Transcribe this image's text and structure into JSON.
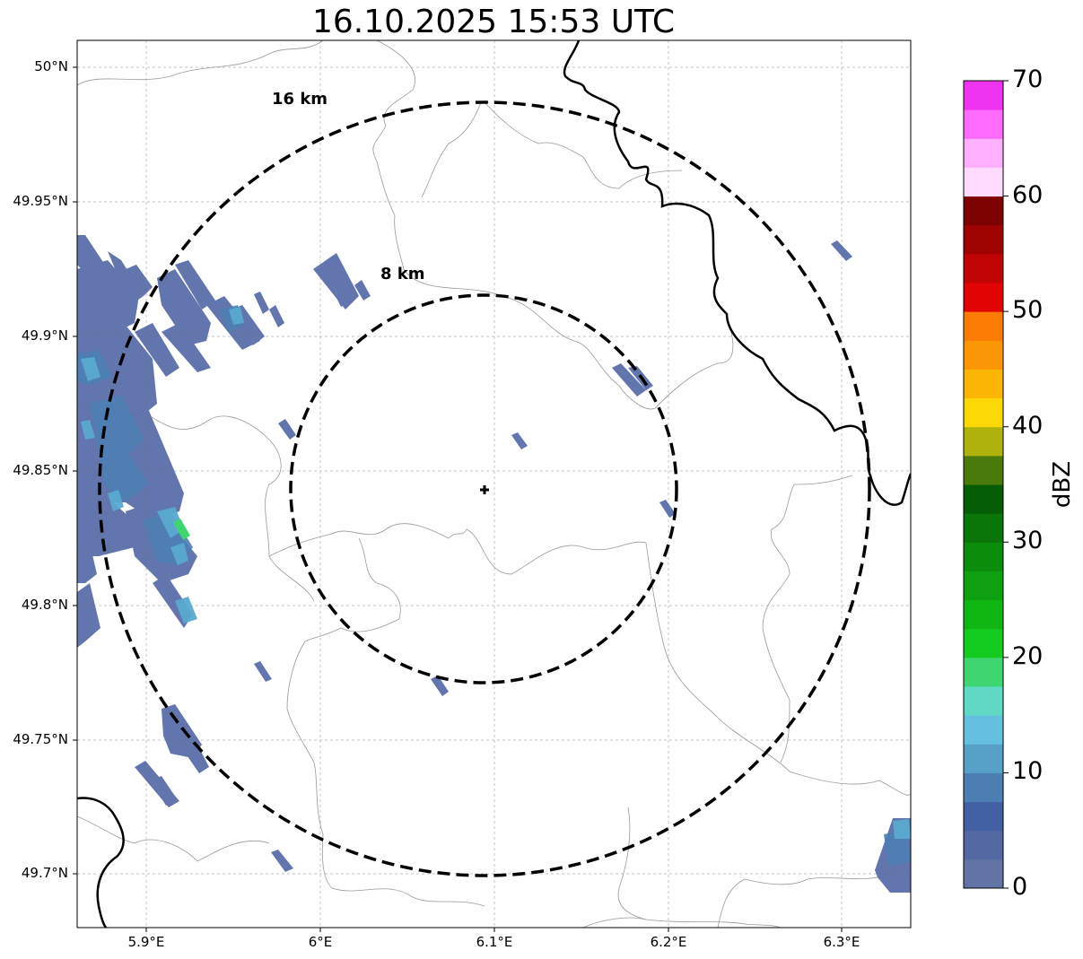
{
  "title": "16.10.2025 15:53 UTC",
  "map": {
    "lat_ticks": [
      "50°N",
      "49.95°N",
      "49.9°N",
      "49.85°N",
      "49.8°N",
      "49.75°N",
      "49.7°N"
    ],
    "lon_ticks": [
      "5.9°E",
      "6°E",
      "6.1°E",
      "6.2°E",
      "6.3°E"
    ],
    "rings": [
      {
        "label": "16 km",
        "radius_km": 16
      },
      {
        "label": "8 km",
        "radius_km": 8
      }
    ],
    "radar_site_marker": "plus-icon",
    "colors": {
      "ring": "#000000",
      "border_thin": "#999999",
      "border_thick": "#000000",
      "grid": "#b0b0b0"
    }
  },
  "colorbar": {
    "label": "dBZ",
    "ticks": [
      "0",
      "10",
      "20",
      "30",
      "40",
      "50",
      "60",
      "70"
    ],
    "min": 0,
    "max": 70,
    "step": 2.5,
    "colors": [
      "#6273a6",
      "#5469a3",
      "#4460a5",
      "#4d7eb3",
      "#57a0c8",
      "#64c0de",
      "#61d8c4",
      "#3fd671",
      "#14cc1f",
      "#10b614",
      "#0ea010",
      "#0c8c0c",
      "#0a760a",
      "#055d05",
      "#4b7a0c",
      "#aeb20b",
      "#fcd806",
      "#fbb505",
      "#fb9704",
      "#fc7b04",
      "#e20404",
      "#c00303",
      "#a00202",
      "#7c0101",
      "#ffdcff",
      "#ffb0ff",
      "#ff6cff",
      "#f033f0"
    ]
  }
}
